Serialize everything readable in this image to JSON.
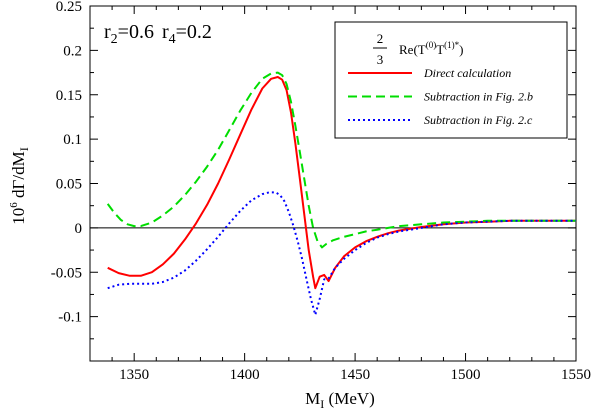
{
  "chart_data": {
    "type": "line",
    "xlabel_main": "M",
    "xlabel_sub": "I",
    "xlabel_unit": " (MeV)",
    "ylabel_prefix": "10",
    "ylabel_exp": "6",
    "ylabel_main": " dΓ/dM",
    "ylabel_sub": "I",
    "xlim": [
      1330,
      1550
    ],
    "ylim": [
      -0.15,
      0.25
    ],
    "xticks": [
      1350,
      1400,
      1450,
      1500,
      1550
    ],
    "xtick_labels": [
      "1350",
      "1400",
      "1450",
      "1500",
      "1550"
    ],
    "yticks": [
      -0.1,
      -0.05,
      0,
      0.05,
      0.1,
      0.15,
      0.2,
      0.25
    ],
    "ytick_labels": [
      "-0.1",
      "-0.05",
      "0",
      "0.05",
      "0.1",
      "0.15",
      "0.2",
      "0.25"
    ],
    "zero_line": true,
    "grid": false,
    "legend_position": "top-right",
    "annotation": {
      "r2": "r",
      "r2_sub": "2",
      "r2_val": "=0.6",
      "r4": "r",
      "r4_sub": "4",
      "r4_val": "=0.2"
    },
    "legend_title": {
      "frac_num": "2",
      "frac_den": "3",
      "expr": "Re(T(0)T(1)*)",
      "expr_base1": "Re(T",
      "expr_sup1": "(0)",
      "expr_base2": "T",
      "expr_sup2": "(1)*",
      "expr_close": ")"
    },
    "series": [
      {
        "name": "Direct calculation",
        "color": "#ff0000",
        "dash": "solid",
        "x": [
          1338,
          1343,
          1348,
          1353,
          1358,
          1363,
          1368,
          1373,
          1378,
          1383,
          1388,
          1393,
          1398,
          1403,
          1408,
          1412,
          1415,
          1417,
          1419,
          1421,
          1423,
          1425,
          1427,
          1429,
          1431,
          1432,
          1434,
          1436,
          1438,
          1441,
          1445,
          1450,
          1455,
          1460,
          1465,
          1470,
          1475,
          1480,
          1490,
          1500,
          1510,
          1520,
          1530,
          1540,
          1550
        ],
        "y": [
          -0.045,
          -0.051,
          -0.054,
          -0.054,
          -0.05,
          -0.041,
          -0.029,
          -0.013,
          0.005,
          0.026,
          0.05,
          0.077,
          0.105,
          0.133,
          0.157,
          0.168,
          0.17,
          0.167,
          0.155,
          0.13,
          0.095,
          0.055,
          0.015,
          -0.025,
          -0.055,
          -0.068,
          -0.055,
          -0.053,
          -0.06,
          -0.045,
          -0.032,
          -0.022,
          -0.015,
          -0.01,
          -0.006,
          -0.003,
          -0.001,
          0.001,
          0.004,
          0.006,
          0.007,
          0.008,
          0.008,
          0.008,
          0.008
        ]
      },
      {
        "name": "Subtraction in Fig. 2.b",
        "color": "#00dd00",
        "dash": "dashed",
        "x": [
          1338,
          1341,
          1344,
          1347,
          1350,
          1353,
          1358,
          1363,
          1368,
          1373,
          1378,
          1383,
          1388,
          1393,
          1398,
          1403,
          1408,
          1412,
          1415,
          1417,
          1419,
          1421,
          1423,
          1425,
          1427,
          1429,
          1431,
          1433,
          1435,
          1437,
          1440,
          1445,
          1450,
          1455,
          1460,
          1465,
          1470,
          1475,
          1480,
          1490,
          1500,
          1510,
          1520,
          1530,
          1540,
          1550
        ],
        "y": [
          0.027,
          0.017,
          0.009,
          0.004,
          0.002,
          0.002,
          0.006,
          0.014,
          0.024,
          0.037,
          0.052,
          0.069,
          0.088,
          0.11,
          0.132,
          0.152,
          0.168,
          0.174,
          0.175,
          0.172,
          0.162,
          0.142,
          0.115,
          0.085,
          0.055,
          0.025,
          0.0,
          -0.015,
          -0.022,
          -0.018,
          -0.014,
          -0.01,
          -0.007,
          -0.004,
          -0.002,
          0.0,
          0.002,
          0.003,
          0.004,
          0.006,
          0.007,
          0.008,
          0.008,
          0.008,
          0.008,
          0.008
        ]
      },
      {
        "name": "Subtraction in Fig. 2.c",
        "color": "#0000ff",
        "dash": "dotted",
        "x": [
          1338,
          1343,
          1348,
          1353,
          1358,
          1363,
          1368,
          1373,
          1378,
          1383,
          1388,
          1393,
          1398,
          1403,
          1408,
          1411,
          1414,
          1416,
          1418,
          1420,
          1422,
          1424,
          1426,
          1428,
          1430,
          1432,
          1434,
          1436,
          1438,
          1441,
          1445,
          1450,
          1455,
          1460,
          1465,
          1470,
          1475,
          1480,
          1490,
          1500,
          1510,
          1520,
          1530,
          1540,
          1550
        ],
        "y": [
          -0.068,
          -0.064,
          -0.063,
          -0.063,
          -0.063,
          -0.061,
          -0.056,
          -0.048,
          -0.037,
          -0.024,
          -0.01,
          0.005,
          0.019,
          0.031,
          0.038,
          0.04,
          0.04,
          0.037,
          0.03,
          0.018,
          0.003,
          -0.015,
          -0.035,
          -0.058,
          -0.08,
          -0.098,
          -0.08,
          -0.058,
          -0.057,
          -0.045,
          -0.035,
          -0.025,
          -0.017,
          -0.011,
          -0.007,
          -0.004,
          -0.002,
          0.0,
          0.004,
          0.006,
          0.007,
          0.008,
          0.008,
          0.008,
          0.008
        ]
      }
    ]
  }
}
